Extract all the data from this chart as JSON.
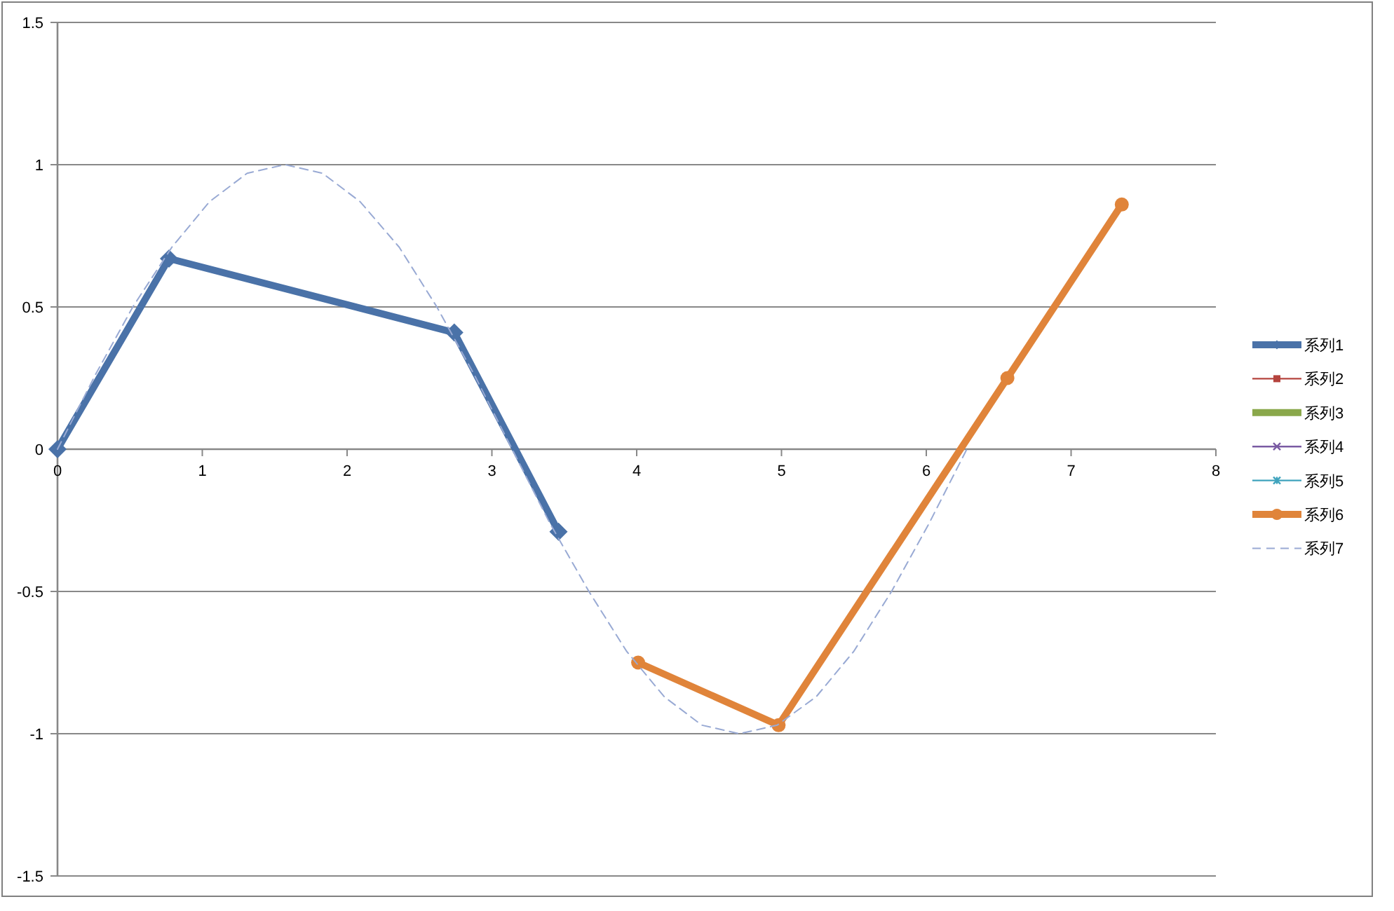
{
  "chart_data": {
    "type": "line",
    "xlim": [
      0,
      8
    ],
    "xticks": [
      0,
      1,
      2,
      3,
      4,
      5,
      6,
      7,
      8
    ],
    "ylim": [
      -1.5,
      1.5
    ],
    "yticks": [
      -1.5,
      -1,
      -0.5,
      0,
      0.5,
      1,
      1.5
    ],
    "grid": "y",
    "legend": "right",
    "series": [
      {
        "name": "系列1",
        "color": "#4a72a8",
        "marker": "diamond",
        "line_style": "solid",
        "x": [
          0,
          0.77,
          2.74,
          3.46
        ],
        "values": [
          0,
          0.67,
          0.41,
          -0.29
        ]
      },
      {
        "name": "系列2",
        "color": "#b5443e",
        "marker": "square",
        "line_style": "solid"
      },
      {
        "name": "系列3",
        "color": "#8aa84b",
        "marker": "none",
        "line_style": "solid"
      },
      {
        "name": "系列4",
        "color": "#7a5ba3",
        "marker": "cross",
        "line_style": "solid"
      },
      {
        "name": "系列5",
        "color": "#3fa3bd",
        "marker": "star",
        "line_style": "solid"
      },
      {
        "name": "系列6",
        "color": "#e0843a",
        "marker": "circle",
        "line_style": "solid",
        "x": [
          4.01,
          4.98,
          6.56,
          7.35
        ],
        "values": [
          -0.75,
          -0.97,
          0.25,
          0.86
        ]
      },
      {
        "name": "系列7",
        "color": "#99aad4",
        "marker": "none",
        "line_style": "dashed",
        "x": [
          0,
          0.26,
          0.52,
          0.79,
          1.05,
          1.31,
          1.57,
          1.83,
          2.09,
          2.36,
          2.62,
          2.88,
          3.14,
          3.4,
          3.67,
          3.93,
          4.19,
          4.45,
          4.71,
          4.97,
          5.24,
          5.5,
          5.76,
          6.02,
          6.28
        ],
        "values": [
          0,
          0.26,
          0.5,
          0.71,
          0.87,
          0.97,
          1,
          0.97,
          0.87,
          0.71,
          0.5,
          0.26,
          0,
          -0.26,
          -0.5,
          -0.71,
          -0.87,
          -0.97,
          -1,
          -0.97,
          -0.87,
          -0.71,
          -0.5,
          -0.26,
          0
        ]
      }
    ]
  }
}
